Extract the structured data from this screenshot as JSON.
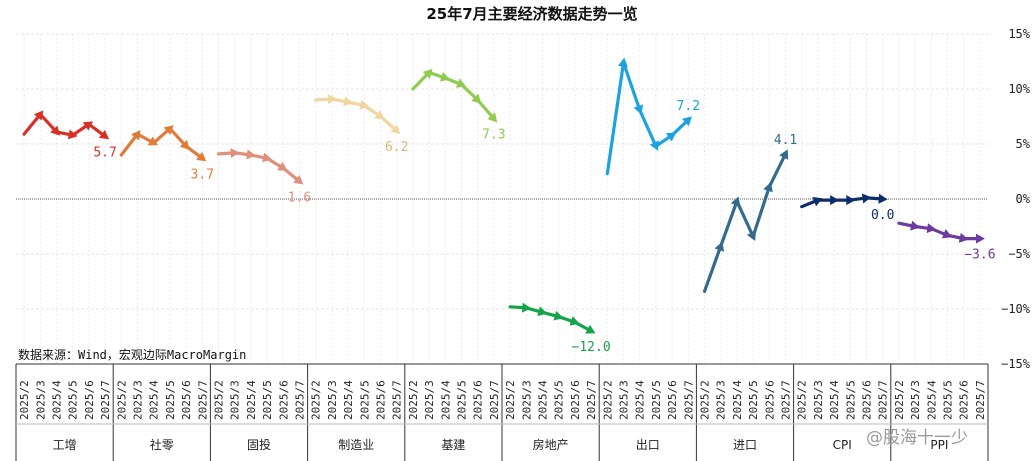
{
  "chart_data": {
    "type": "line",
    "title": "25年7月主要经济数据走势一览",
    "source": "数据来源：Wind，宏观边际MacroMargin",
    "watermark": "@股海十一少",
    "yaxis": {
      "min": -15,
      "max": 15,
      "ticks": [
        15,
        10,
        5,
        0,
        -5,
        -10,
        -15
      ],
      "tick_labels": [
        "15%",
        "10%",
        "5%",
        "0%",
        "−5%",
        "−10%",
        "−15%"
      ]
    },
    "grid": "on",
    "x": [
      "2025/2",
      "2025/3",
      "2025/4",
      "2025/5",
      "2025/6",
      "2025/7"
    ],
    "series": [
      {
        "name": "工增",
        "color": "#d73027",
        "values": [
          5.9,
          7.7,
          6.1,
          5.8,
          6.8,
          5.7
        ],
        "end_label": "5.7"
      },
      {
        "name": "社零",
        "color": "#e07b39",
        "values": [
          4.0,
          5.9,
          5.1,
          6.4,
          4.8,
          3.7
        ],
        "end_label": "3.7"
      },
      {
        "name": "固投",
        "color": "#e08f7c",
        "values": [
          4.1,
          4.2,
          4.0,
          3.7,
          2.8,
          1.6
        ],
        "end_label": "1.6"
      },
      {
        "name": "制造业",
        "color": "#f2d6a2",
        "values": [
          9.0,
          9.1,
          8.8,
          8.5,
          7.5,
          6.2
        ],
        "end_label": "6.2"
      },
      {
        "name": "基建",
        "color": "#8fcb4e",
        "values": [
          10.0,
          11.5,
          11.0,
          10.4,
          9.0,
          7.3
        ],
        "end_label": "7.3"
      },
      {
        "name": "房地产",
        "color": "#16a34a",
        "values": [
          -9.8,
          -9.9,
          -10.3,
          -10.7,
          -11.2,
          -12.0
        ],
        "end_label": "−12.0"
      },
      {
        "name": "出口",
        "color": "#1aa3e0",
        "values": [
          2.3,
          12.4,
          8.1,
          4.8,
          5.8,
          7.2
        ],
        "end_label": "7.2"
      },
      {
        "name": "进口",
        "color": "#336a8e",
        "values": [
          -8.4,
          -4.3,
          -0.2,
          -3.4,
          1.1,
          4.1
        ],
        "end_label": "4.1"
      },
      {
        "name": "CPI",
        "color": "#0f2d6b",
        "values": [
          -0.7,
          -0.1,
          -0.1,
          -0.1,
          0.1,
          0.0
        ],
        "end_label": "0.0"
      },
      {
        "name": "PPI",
        "color": "#6b3b9e",
        "values": [
          -2.2,
          -2.5,
          -2.7,
          -3.3,
          -3.6,
          -3.6
        ],
        "end_label": "−3.6"
      }
    ]
  }
}
